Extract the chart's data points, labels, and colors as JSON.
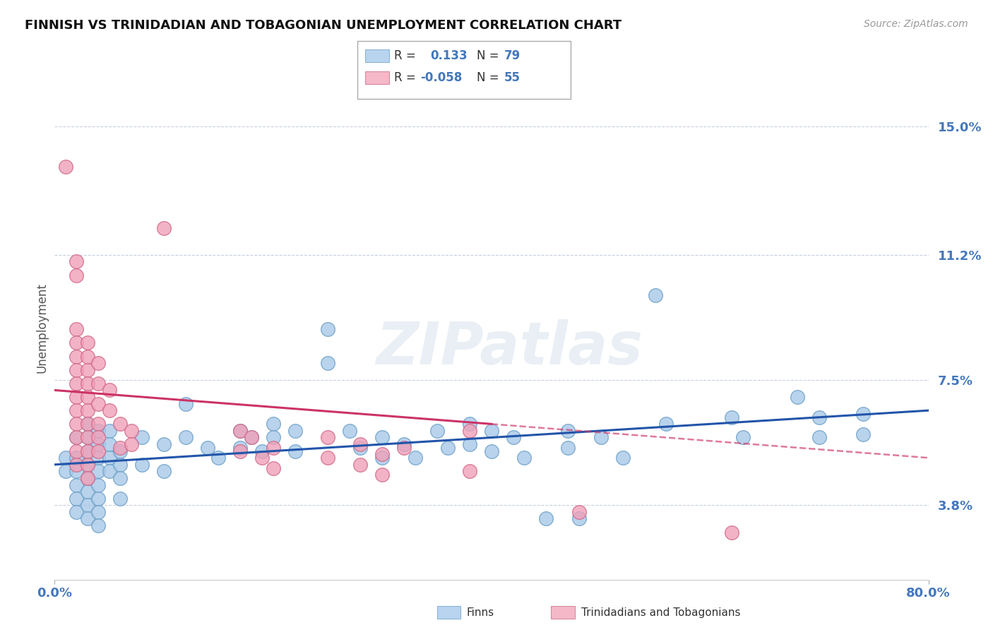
{
  "title": "FINNISH VS TRINIDADIAN AND TOBAGONIAN UNEMPLOYMENT CORRELATION CHART",
  "source": "Source: ZipAtlas.com",
  "ylabel": "Unemployment",
  "ytick_labels": [
    "3.8%",
    "7.5%",
    "11.2%",
    "15.0%"
  ],
  "ytick_values": [
    0.038,
    0.075,
    0.112,
    0.15
  ],
  "xmin": 0.0,
  "xmax": 0.8,
  "ymin": 0.016,
  "ymax": 0.165,
  "legend_entries": [
    {
      "color": "#b8d4ee",
      "R": "0.133",
      "N": "79"
    },
    {
      "color": "#f4b8c8",
      "R": "-0.058",
      "N": "55"
    }
  ],
  "finn_color": "#a8c8e8",
  "finn_edge": "#6a9fc8",
  "tnt_color": "#f0a0b8",
  "tnt_edge": "#d06888",
  "finn_line_color": "#2255aa",
  "tnt_line_color": "#cc3366",
  "background_color": "#ffffff",
  "grid_color": "#c8d0dc",
  "axis_label_color": "#4477bb",
  "title_color": "#111111",
  "finn_scatter": [
    [
      0.01,
      0.052
    ],
    [
      0.01,
      0.048
    ],
    [
      0.02,
      0.058
    ],
    [
      0.02,
      0.052
    ],
    [
      0.02,
      0.048
    ],
    [
      0.02,
      0.044
    ],
    [
      0.02,
      0.04
    ],
    [
      0.02,
      0.036
    ],
    [
      0.03,
      0.062
    ],
    [
      0.03,
      0.058
    ],
    [
      0.03,
      0.054
    ],
    [
      0.03,
      0.05
    ],
    [
      0.03,
      0.046
    ],
    [
      0.03,
      0.042
    ],
    [
      0.03,
      0.038
    ],
    [
      0.03,
      0.034
    ],
    [
      0.04,
      0.06
    ],
    [
      0.04,
      0.056
    ],
    [
      0.04,
      0.052
    ],
    [
      0.04,
      0.048
    ],
    [
      0.04,
      0.044
    ],
    [
      0.04,
      0.04
    ],
    [
      0.04,
      0.036
    ],
    [
      0.04,
      0.032
    ],
    [
      0.05,
      0.06
    ],
    [
      0.05,
      0.056
    ],
    [
      0.05,
      0.052
    ],
    [
      0.05,
      0.048
    ],
    [
      0.06,
      0.054
    ],
    [
      0.06,
      0.05
    ],
    [
      0.06,
      0.046
    ],
    [
      0.06,
      0.04
    ],
    [
      0.08,
      0.058
    ],
    [
      0.08,
      0.05
    ],
    [
      0.1,
      0.056
    ],
    [
      0.1,
      0.048
    ],
    [
      0.12,
      0.068
    ],
    [
      0.12,
      0.058
    ],
    [
      0.14,
      0.055
    ],
    [
      0.15,
      0.052
    ],
    [
      0.17,
      0.06
    ],
    [
      0.17,
      0.055
    ],
    [
      0.18,
      0.058
    ],
    [
      0.19,
      0.054
    ],
    [
      0.2,
      0.062
    ],
    [
      0.2,
      0.058
    ],
    [
      0.22,
      0.06
    ],
    [
      0.22,
      0.054
    ],
    [
      0.25,
      0.09
    ],
    [
      0.25,
      0.08
    ],
    [
      0.27,
      0.06
    ],
    [
      0.28,
      0.055
    ],
    [
      0.3,
      0.058
    ],
    [
      0.3,
      0.052
    ],
    [
      0.32,
      0.056
    ],
    [
      0.33,
      0.052
    ],
    [
      0.35,
      0.06
    ],
    [
      0.36,
      0.055
    ],
    [
      0.38,
      0.062
    ],
    [
      0.38,
      0.056
    ],
    [
      0.4,
      0.06
    ],
    [
      0.4,
      0.054
    ],
    [
      0.42,
      0.058
    ],
    [
      0.43,
      0.052
    ],
    [
      0.45,
      0.034
    ],
    [
      0.47,
      0.06
    ],
    [
      0.47,
      0.055
    ],
    [
      0.48,
      0.034
    ],
    [
      0.5,
      0.058
    ],
    [
      0.52,
      0.052
    ],
    [
      0.55,
      0.1
    ],
    [
      0.56,
      0.062
    ],
    [
      0.62,
      0.064
    ],
    [
      0.63,
      0.058
    ],
    [
      0.68,
      0.07
    ],
    [
      0.7,
      0.064
    ],
    [
      0.7,
      0.058
    ],
    [
      0.74,
      0.065
    ],
    [
      0.74,
      0.059
    ]
  ],
  "tnt_scatter": [
    [
      0.01,
      0.138
    ],
    [
      0.02,
      0.11
    ],
    [
      0.02,
      0.106
    ],
    [
      0.02,
      0.09
    ],
    [
      0.02,
      0.086
    ],
    [
      0.02,
      0.082
    ],
    [
      0.02,
      0.078
    ],
    [
      0.02,
      0.074
    ],
    [
      0.02,
      0.07
    ],
    [
      0.02,
      0.066
    ],
    [
      0.02,
      0.062
    ],
    [
      0.02,
      0.058
    ],
    [
      0.02,
      0.054
    ],
    [
      0.02,
      0.05
    ],
    [
      0.03,
      0.086
    ],
    [
      0.03,
      0.082
    ],
    [
      0.03,
      0.078
    ],
    [
      0.03,
      0.074
    ],
    [
      0.03,
      0.07
    ],
    [
      0.03,
      0.066
    ],
    [
      0.03,
      0.062
    ],
    [
      0.03,
      0.058
    ],
    [
      0.03,
      0.054
    ],
    [
      0.03,
      0.05
    ],
    [
      0.03,
      0.046
    ],
    [
      0.04,
      0.08
    ],
    [
      0.04,
      0.074
    ],
    [
      0.04,
      0.068
    ],
    [
      0.04,
      0.062
    ],
    [
      0.04,
      0.058
    ],
    [
      0.04,
      0.054
    ],
    [
      0.05,
      0.072
    ],
    [
      0.05,
      0.066
    ],
    [
      0.06,
      0.062
    ],
    [
      0.06,
      0.055
    ],
    [
      0.07,
      0.06
    ],
    [
      0.07,
      0.056
    ],
    [
      0.1,
      0.12
    ],
    [
      0.17,
      0.06
    ],
    [
      0.17,
      0.054
    ],
    [
      0.18,
      0.058
    ],
    [
      0.19,
      0.052
    ],
    [
      0.2,
      0.055
    ],
    [
      0.2,
      0.049
    ],
    [
      0.25,
      0.058
    ],
    [
      0.25,
      0.052
    ],
    [
      0.28,
      0.056
    ],
    [
      0.28,
      0.05
    ],
    [
      0.3,
      0.053
    ],
    [
      0.3,
      0.047
    ],
    [
      0.32,
      0.055
    ],
    [
      0.38,
      0.06
    ],
    [
      0.38,
      0.048
    ],
    [
      0.48,
      0.036
    ],
    [
      0.62,
      0.03
    ]
  ],
  "finn_R": 0.133,
  "finn_N": 79,
  "tnt_R": -0.058,
  "tnt_N": 55
}
